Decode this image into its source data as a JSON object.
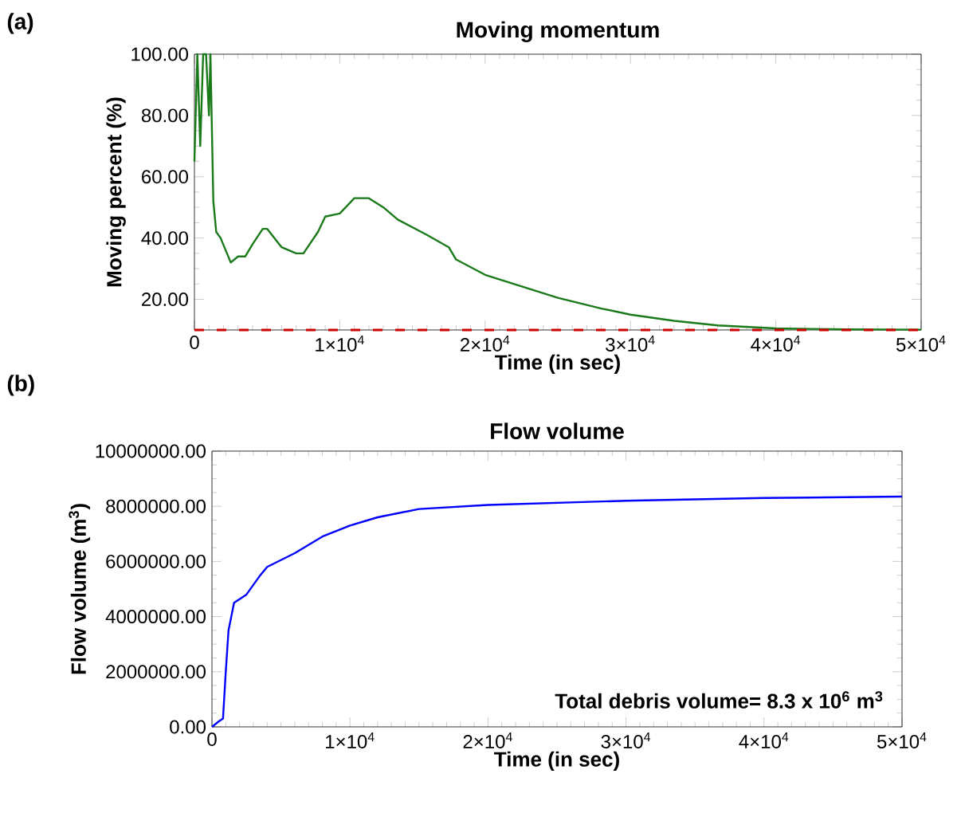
{
  "chart_data": [
    {
      "type": "line",
      "title": "Moving momentum",
      "xlabel": "Time (in sec)",
      "ylabel": "Moving percent (%)",
      "annotations": [
        "(a)"
      ],
      "x": [
        0,
        200,
        400,
        600,
        800,
        1000,
        1100,
        1300,
        1500,
        1800,
        2500,
        3000,
        3500,
        4000,
        4700,
        5000,
        6000,
        7000,
        7500,
        8500,
        9000,
        10000,
        11000,
        12000,
        13000,
        14000,
        16000,
        17500,
        18000,
        20000,
        22000,
        25000,
        28000,
        30000,
        33000,
        36000,
        40000,
        45000,
        50000
      ],
      "series": [
        {
          "color": "#1a7a1a",
          "values": [
            65,
            100,
            70,
            100,
            100,
            80,
            100,
            52,
            42,
            40,
            32,
            34,
            34,
            38,
            43,
            43,
            37,
            35,
            35,
            42,
            47,
            48,
            53,
            53,
            50,
            46,
            41,
            37,
            33,
            28,
            25,
            20.5,
            17,
            15,
            13,
            11.5,
            10.5,
            10.2,
            10.1
          ]
        }
      ],
      "ref_lines": [
        {
          "axis": "y",
          "value": 10,
          "color": "#cc0000",
          "line_style": "dashed"
        }
      ],
      "xlim": [
        0,
        50000
      ],
      "ylim": [
        10,
        100
      ],
      "xticks": [
        0,
        {
          "value": 10000,
          "label": "1×10$^{4}$"
        },
        {
          "value": 20000,
          "label": "2×10$^{4}$"
        },
        {
          "value": 30000,
          "label": "3×10$^{4}$"
        },
        {
          "value": 40000,
          "label": "4×10$^{4}$"
        },
        {
          "value": 50000,
          "label": "5×10$^{4}$"
        }
      ],
      "yticks": [
        {
          "value": 20,
          "label": "20.00"
        },
        {
          "value": 40,
          "label": "40.00"
        },
        {
          "value": 60,
          "label": "60.00"
        },
        {
          "value": 80,
          "label": "80.00"
        },
        {
          "value": 100,
          "label": "100.00"
        }
      ],
      "grid": false
    },
    {
      "type": "line",
      "title": "Flow volume",
      "xlabel": "Time (in sec)",
      "ylabel": "Flow volume (m$^{3}$)",
      "annotations": [
        "(b)",
        "Total debris volume= 8.3 x 10$^{6}$ m$^{3}$"
      ],
      "x": [
        0,
        500,
        800,
        1000,
        1200,
        1600,
        2500,
        3500,
        4000,
        6000,
        8000,
        10000,
        12000,
        15000,
        20000,
        30000,
        40000,
        50000
      ],
      "series": [
        {
          "color": "#0000ff",
          "values": [
            0,
            200000,
            300000,
            2000000,
            3500000,
            4500000,
            4800000,
            5500000,
            5800000,
            6300000,
            6900000,
            7300000,
            7600000,
            7900000,
            8050000,
            8200000,
            8300000,
            8350000
          ]
        }
      ],
      "xlim": [
        0,
        50000
      ],
      "ylim": [
        0,
        10000000
      ],
      "xticks": [
        0,
        {
          "value": 10000,
          "label": "1×10$^{4}$"
        },
        {
          "value": 20000,
          "label": "2×10$^{4}$"
        },
        {
          "value": 30000,
          "label": "3×10$^{4}$"
        },
        {
          "value": 40000,
          "label": "4×10$^{4}$"
        },
        {
          "value": 50000,
          "label": "5×10$^{4}$"
        }
      ],
      "yticks": [
        {
          "value": 0,
          "label": "0.00"
        },
        {
          "value": 2000000,
          "label": "2000000.00"
        },
        {
          "value": 4000000,
          "label": "4000000.00"
        },
        {
          "value": 6000000,
          "label": "6000000.00"
        },
        {
          "value": 8000000,
          "label": "8000000.00"
        },
        {
          "value": 10000000,
          "label": "10000000.00"
        }
      ],
      "grid": false
    }
  ]
}
